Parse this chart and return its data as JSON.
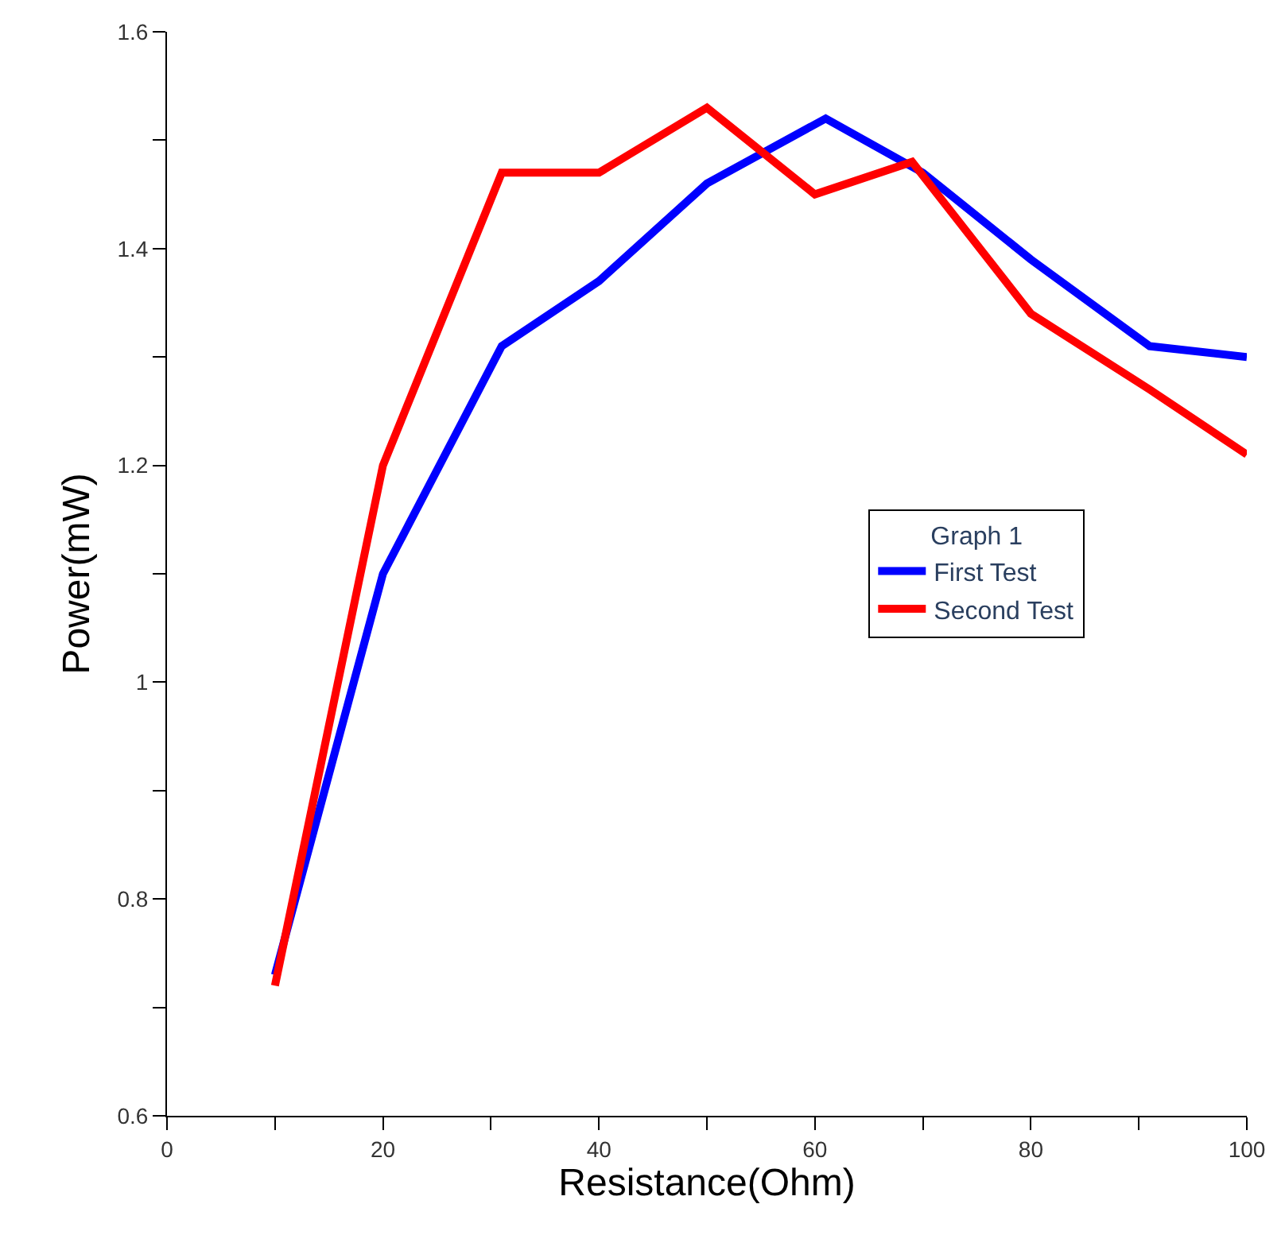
{
  "chart_data": {
    "type": "line",
    "xlabel": "Resistance(Ohm)",
    "ylabel": "Power(mW)",
    "legend_title": "Graph 1",
    "xlim": [
      0,
      100
    ],
    "xticks": [
      0,
      {
        "value": 10,
        "label": null
      },
      20,
      {
        "value": 30,
        "label": null
      },
      40,
      {
        "value": 50,
        "label": null
      },
      60,
      {
        "value": 70,
        "label": null
      },
      80,
      {
        "value": 90,
        "label": null
      },
      100
    ],
    "ylim": [
      0.6,
      1.6
    ],
    "yticks": [
      0.6,
      {
        "value": 0.7,
        "label": null
      },
      0.8,
      {
        "value": 0.9,
        "label": null
      },
      1,
      {
        "value": 1.1,
        "label": null
      },
      1.2,
      {
        "value": 1.3,
        "label": null
      },
      1.4,
      {
        "value": 1.5,
        "label": null
      },
      1.6
    ],
    "legend": "center right",
    "marker": "none",
    "line_style": "solid",
    "series": [
      {
        "name": "First Test",
        "color": "#0000ff",
        "x": [
          10,
          20,
          31,
          40,
          50,
          61,
          70,
          80,
          91,
          100
        ],
        "values": [
          0.73,
          1.1,
          1.31,
          1.37,
          1.46,
          1.52,
          1.47,
          1.39,
          1.31,
          1.3
        ]
      },
      {
        "name": "Second Test",
        "color": "#ff0000",
        "x": [
          10,
          20,
          31,
          40,
          50,
          60,
          69,
          80,
          91,
          100
        ],
        "values": [
          0.72,
          1.2,
          1.47,
          1.47,
          1.53,
          1.45,
          1.48,
          1.34,
          1.27,
          1.21
        ]
      }
    ]
  }
}
